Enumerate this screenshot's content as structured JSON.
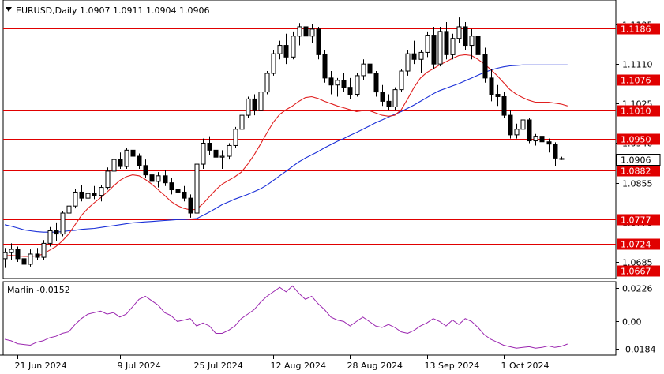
{
  "header": {
    "symbol": "EURUSD,Daily",
    "ohlc": "1.0907 1.0911 1.0904 1.0906"
  },
  "indicator": {
    "label": "Marlin -0.0152"
  },
  "chart_data": {
    "type": "candlestick",
    "price_axis": {
      "ticks": [
        1.1195,
        1.111,
        1.1025,
        1.094,
        1.0855,
        1.077,
        1.0685
      ],
      "tick_labels": [
        "1.1195",
        "1.1110",
        "1.1025",
        "1.0940",
        "1.0855",
        "1.0770",
        "1.0685"
      ]
    },
    "current_price": {
      "value": 1.0906,
      "label": "1.0906"
    },
    "horizontal_levels": [
      {
        "value": 1.1186,
        "label": "1.1186"
      },
      {
        "value": 1.1076,
        "label": "1.1076"
      },
      {
        "value": 1.101,
        "label": "1.1010"
      },
      {
        "value": 1.095,
        "label": "1.0950"
      },
      {
        "value": 1.0882,
        "label": "1.0882"
      },
      {
        "value": 1.0777,
        "label": "1.0777"
      },
      {
        "value": 1.0724,
        "label": "1.0724"
      },
      {
        "value": 1.0667,
        "label": "1.0667"
      }
    ],
    "time_axis": [
      {
        "index": 2,
        "label": "21 Jun 2024"
      },
      {
        "index": 18,
        "label": "9 Jul 2024"
      },
      {
        "index": 30,
        "label": "25 Jul 2024"
      },
      {
        "index": 42,
        "label": "12 Aug 2024"
      },
      {
        "index": 54,
        "label": "28 Aug 2024"
      },
      {
        "index": 66,
        "label": "13 Sep 2024"
      },
      {
        "index": 78,
        "label": "1 Oct 2024"
      }
    ],
    "candles": [
      [
        1.0692,
        1.0715,
        1.0672,
        1.0705
      ],
      [
        1.0705,
        1.0725,
        1.069,
        1.0712
      ],
      [
        1.0712,
        1.0718,
        1.0685,
        1.0692
      ],
      [
        1.0692,
        1.0708,
        1.0668,
        1.068
      ],
      [
        1.068,
        1.0712,
        1.0675,
        1.0702
      ],
      [
        1.0702,
        1.0715,
        1.069,
        1.0695
      ],
      [
        1.0695,
        1.0732,
        1.069,
        1.0725
      ],
      [
        1.0725,
        1.076,
        1.0718,
        1.0752
      ],
      [
        1.0752,
        1.077,
        1.073,
        1.0745
      ],
      [
        1.0745,
        1.0795,
        1.074,
        1.079
      ],
      [
        1.079,
        1.0815,
        1.078,
        1.0805
      ],
      [
        1.0805,
        1.0842,
        1.08,
        1.0835
      ],
      [
        1.0835,
        1.085,
        1.0815,
        1.0822
      ],
      [
        1.0822,
        1.084,
        1.0812,
        1.0832
      ],
      [
        1.0832,
        1.0848,
        1.082,
        1.0828
      ],
      [
        1.0828,
        1.085,
        1.0815,
        1.0845
      ],
      [
        1.0845,
        1.0888,
        1.084,
        1.088
      ],
      [
        1.088,
        1.0912,
        1.0872,
        1.0905
      ],
      [
        1.0905,
        1.092,
        1.0885,
        1.089
      ],
      [
        1.089,
        1.093,
        1.0885,
        1.0925
      ],
      [
        1.0925,
        1.0948,
        1.0905,
        1.0912
      ],
      [
        1.0912,
        1.0918,
        1.0885,
        1.0892
      ],
      [
        1.0892,
        1.0905,
        1.0865,
        1.0872
      ],
      [
        1.0872,
        1.0885,
        1.085,
        1.0858
      ],
      [
        1.0858,
        1.0878,
        1.0845,
        1.087
      ],
      [
        1.087,
        1.0882,
        1.0848,
        1.0855
      ],
      [
        1.0855,
        1.0865,
        1.083,
        1.084
      ],
      [
        1.084,
        1.085,
        1.0822,
        1.0835
      ],
      [
        1.0835,
        1.0848,
        1.0815,
        1.0822
      ],
      [
        1.0822,
        1.083,
        1.078,
        1.079
      ],
      [
        1.079,
        1.09,
        1.0778,
        1.0895
      ],
      [
        1.0895,
        1.095,
        1.0885,
        1.094
      ],
      [
        1.094,
        1.0955,
        1.0915,
        1.0925
      ],
      [
        1.0925,
        1.0945,
        1.089,
        1.091
      ],
      [
        1.091,
        1.0925,
        1.0885,
        1.0912
      ],
      [
        1.0912,
        1.094,
        1.0905,
        1.0935
      ],
      [
        1.0935,
        1.0975,
        1.093,
        1.097
      ],
      [
        1.097,
        1.101,
        1.096,
        1.1
      ],
      [
        1.1,
        1.104,
        1.0995,
        1.1035
      ],
      [
        1.1035,
        1.1045,
        1.1,
        1.101
      ],
      [
        1.101,
        1.1055,
        1.1005,
        1.105
      ],
      [
        1.105,
        1.1095,
        1.1045,
        1.109
      ],
      [
        1.109,
        1.114,
        1.1085,
        1.1132
      ],
      [
        1.1132,
        1.116,
        1.112,
        1.115
      ],
      [
        1.115,
        1.1175,
        1.111,
        1.1125
      ],
      [
        1.1125,
        1.118,
        1.112,
        1.117
      ],
      [
        1.117,
        1.1198,
        1.115,
        1.119
      ],
      [
        1.119,
        1.1202,
        1.116,
        1.117
      ],
      [
        1.117,
        1.1195,
        1.1155,
        1.1185
      ],
      [
        1.1185,
        1.119,
        1.112,
        1.113
      ],
      [
        1.113,
        1.114,
        1.107,
        1.108
      ],
      [
        1.108,
        1.1095,
        1.1045,
        1.1065
      ],
      [
        1.1065,
        1.108,
        1.104,
        1.1075
      ],
      [
        1.1075,
        1.109,
        1.105,
        1.106
      ],
      [
        1.106,
        1.108,
        1.1035,
        1.1045
      ],
      [
        1.1045,
        1.109,
        1.104,
        1.1085
      ],
      [
        1.1085,
        1.112,
        1.1075,
        1.111
      ],
      [
        1.111,
        1.1135,
        1.108,
        1.109
      ],
      [
        1.109,
        1.1095,
        1.104,
        1.105
      ],
      [
        1.105,
        1.1065,
        1.102,
        1.103
      ],
      [
        1.103,
        1.1045,
        1.101,
        1.1018
      ],
      [
        1.1018,
        1.106,
        1.101,
        1.1055
      ],
      [
        1.1055,
        1.11,
        1.105,
        1.1095
      ],
      [
        1.1095,
        1.114,
        1.1085,
        1.1132
      ],
      [
        1.1132,
        1.116,
        1.111,
        1.112
      ],
      [
        1.112,
        1.114,
        1.109,
        1.1135
      ],
      [
        1.1135,
        1.118,
        1.1125,
        1.1172
      ],
      [
        1.1172,
        1.119,
        1.11,
        1.111
      ],
      [
        1.111,
        1.119,
        1.1105,
        1.118
      ],
      [
        1.118,
        1.12,
        1.112,
        1.113
      ],
      [
        1.113,
        1.1175,
        1.112,
        1.1165
      ],
      [
        1.1165,
        1.121,
        1.1155,
        1.119
      ],
      [
        1.119,
        1.12,
        1.114,
        1.115
      ],
      [
        1.115,
        1.1185,
        1.112,
        1.117
      ],
      [
        1.117,
        1.1205,
        1.112,
        1.113
      ],
      [
        1.113,
        1.1145,
        1.107,
        1.108
      ],
      [
        1.108,
        1.11,
        1.103,
        1.1045
      ],
      [
        1.1045,
        1.1065,
        1.102,
        1.104
      ],
      [
        1.104,
        1.105,
        1.0995,
        1.1
      ],
      [
        1.1,
        1.101,
        1.095,
        1.0958
      ],
      [
        1.0958,
        1.0982,
        1.095,
        1.097
      ],
      [
        1.097,
        1.1002,
        1.096,
        1.099
      ],
      [
        1.099,
        1.0995,
        1.094,
        1.0945
      ],
      [
        1.0945,
        1.096,
        1.0935,
        1.0955
      ],
      [
        1.0955,
        1.0965,
        1.0932,
        1.0943
      ],
      [
        1.0943,
        1.095,
        1.092,
        1.0938
      ],
      [
        1.0938,
        1.0942,
        1.089,
        1.0908
      ],
      [
        1.0907,
        1.0911,
        1.0904,
        1.0906
      ]
    ],
    "ma_red": [
      1.0698,
      1.0699,
      1.0698,
      1.0697,
      1.0697,
      1.0698,
      1.0702,
      1.071,
      1.0718,
      1.073,
      1.0745,
      1.0765,
      1.0785,
      1.08,
      1.0812,
      1.0823,
      1.0835,
      1.0848,
      1.086,
      1.0868,
      1.0872,
      1.087,
      1.0862,
      1.0852,
      1.084,
      1.0828,
      1.0815,
      1.0806,
      1.08,
      1.0797,
      1.0798,
      1.081,
      1.0825,
      1.084,
      1.0852,
      1.086,
      1.0868,
      1.0878,
      1.0895,
      1.0915,
      1.0938,
      1.0962,
      1.0985,
      1.1002,
      1.1012,
      1.102,
      1.103,
      1.1038,
      1.104,
      1.1036,
      1.103,
      1.1025,
      1.102,
      1.1016,
      1.1012,
      1.1008,
      1.101,
      1.101,
      1.1005,
      1.1,
      1.0998,
      1.1,
      1.1012,
      1.1035,
      1.106,
      1.108,
      1.1092,
      1.11,
      1.1108,
      1.1115,
      1.1122,
      1.1128,
      1.113,
      1.1128,
      1.112,
      1.111,
      1.1098,
      1.1085,
      1.107,
      1.1055,
      1.1045,
      1.1038,
      1.1032,
      1.1028,
      1.1028,
      1.1028,
      1.1026,
      1.1024,
      1.102
    ],
    "ma_blue": [
      1.0765,
      1.0762,
      1.0758,
      1.0754,
      1.0752,
      1.075,
      1.0749,
      1.0749,
      1.0749,
      1.075,
      1.0752,
      1.0753,
      1.0755,
      1.0756,
      1.0757,
      1.0759,
      1.0761,
      1.0763,
      1.0765,
      1.0767,
      1.0769,
      1.077,
      1.0771,
      1.0772,
      1.0773,
      1.0774,
      1.0775,
      1.0776,
      1.0776,
      1.0777,
      1.0778,
      1.0785,
      1.0792,
      1.08,
      1.0808,
      1.0814,
      1.082,
      1.0825,
      1.083,
      1.0836,
      1.0842,
      1.085,
      1.086,
      1.087,
      1.088,
      1.089,
      1.09,
      1.0908,
      1.0915,
      1.0922,
      1.093,
      1.0937,
      1.0944,
      1.095,
      1.0957,
      1.0963,
      1.097,
      1.0977,
      1.0984,
      1.099,
      1.0996,
      1.1002,
      1.1008,
      1.1015,
      1.1022,
      1.103,
      1.1038,
      1.1046,
      1.1053,
      1.1058,
      1.1063,
      1.1068,
      1.1074,
      1.108,
      1.1086,
      1.1092,
      1.1097,
      1.1101,
      1.1104,
      1.1106,
      1.1107,
      1.1108,
      1.1108,
      1.1108,
      1.1108,
      1.1108,
      1.1108,
      1.1108,
      1.1108
    ],
    "oscillator": {
      "ticks": [
        0.0226,
        0.0,
        -0.0184
      ],
      "tick_labels": [
        "0.0226",
        "0.00",
        "-0.0184"
      ],
      "values": [
        -0.012,
        -0.013,
        -0.015,
        -0.0155,
        -0.016,
        -0.014,
        -0.013,
        -0.011,
        -0.01,
        -0.008,
        -0.007,
        -0.002,
        0.002,
        0.005,
        0.006,
        0.007,
        0.005,
        0.006,
        0.003,
        0.005,
        0.01,
        0.015,
        0.017,
        0.014,
        0.011,
        0.006,
        0.004,
        0.0,
        0.001,
        0.002,
        -0.003,
        -0.001,
        -0.003,
        -0.008,
        -0.008,
        -0.006,
        -0.003,
        0.002,
        0.005,
        0.008,
        0.013,
        0.017,
        0.02,
        0.023,
        0.02,
        0.024,
        0.019,
        0.015,
        0.017,
        0.012,
        0.008,
        0.003,
        0.001,
        0.0,
        -0.003,
        0.0,
        0.003,
        0.0,
        -0.003,
        -0.004,
        -0.002,
        -0.004,
        -0.007,
        -0.008,
        -0.006,
        -0.003,
        -0.001,
        0.002,
        0.0,
        -0.003,
        0.001,
        -0.002,
        0.002,
        0.0,
        -0.004,
        -0.009,
        -0.012,
        -0.014,
        -0.016,
        -0.017,
        -0.018,
        -0.0175,
        -0.017,
        -0.018,
        -0.0175,
        -0.0165,
        -0.0175,
        -0.0168,
        -0.0152
      ]
    }
  }
}
